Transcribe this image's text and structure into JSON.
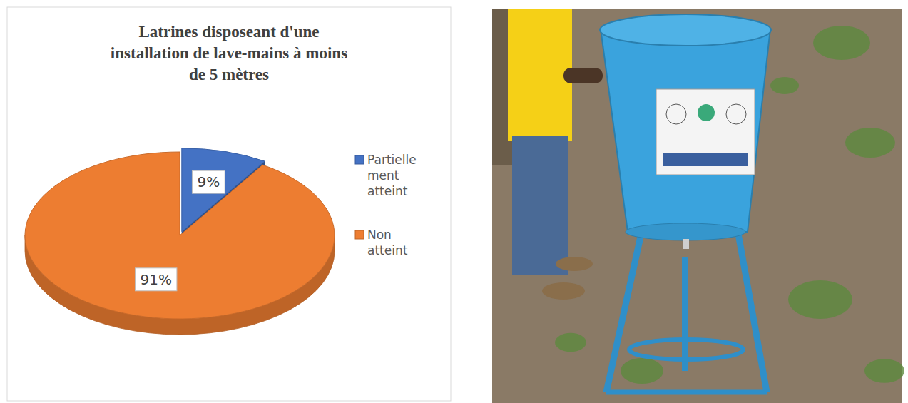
{
  "chart_data": {
    "type": "pie",
    "title": "Latrines disposeant d'une installation de lave-mains à moins de 5 mètres",
    "categories": [
      "Partiellement atteint",
      "Non atteint"
    ],
    "values": [
      9,
      91
    ],
    "value_labels": [
      "9%",
      "91%"
    ],
    "colors": [
      "#4472c4",
      "#ed7d31"
    ],
    "data_labels": true,
    "legend": "right"
  }
}
